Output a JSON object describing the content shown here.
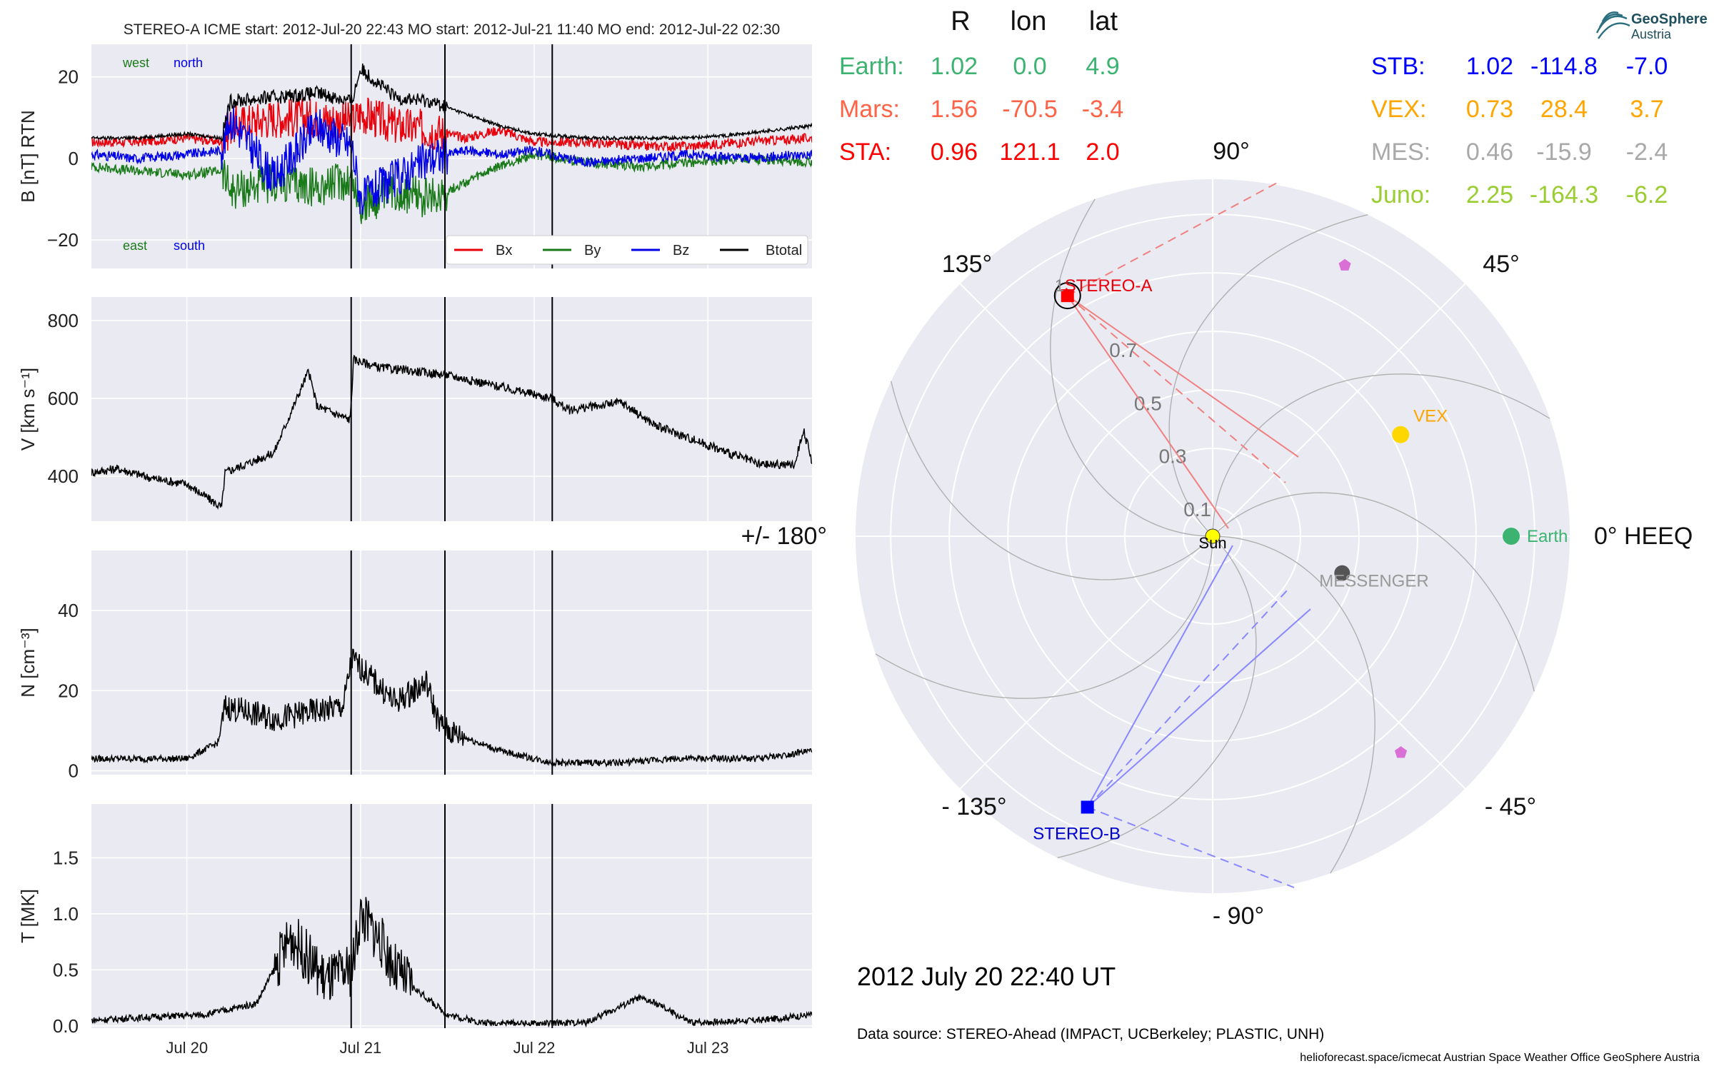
{
  "chart_data": [
    {
      "type": "line",
      "panel": "B",
      "title": "STEREO-A    ICME start: 2012-Jul-20 22:43    MO start: 2012-Jul-21 11:40    MO end: 2012-Jul-22 02:30",
      "ylabel": "B [nT] RTN",
      "ylim": [
        -27,
        28
      ],
      "yticks": [
        "20",
        "0",
        "−20"
      ],
      "ytick_values": [
        20,
        0,
        -20
      ],
      "xlim": [
        19.45,
        23.6
      ],
      "annotations": {
        "west": "west",
        "north": "north",
        "east": "east",
        "south": "south"
      },
      "legend": {
        "placement": "bottom-right",
        "entries": [
          "Bx",
          "By",
          "Bz",
          "Btotal"
        ]
      },
      "series": [
        {
          "name": "Bx",
          "color": "#e8000b",
          "x": [
            19.45,
            19.7,
            20.0,
            20.2,
            20.25,
            20.5,
            20.75,
            20.95,
            21.0,
            21.2,
            21.4,
            21.6,
            21.8,
            22.0,
            22.3,
            22.6,
            22.9,
            23.2,
            23.6
          ],
          "y": [
            4,
            4,
            5,
            4,
            8,
            10,
            10,
            9,
            11,
            8,
            7,
            5,
            7,
            4,
            4,
            3,
            3,
            4,
            5
          ]
        },
        {
          "name": "By",
          "color": "#1a7a1a",
          "x": [
            19.45,
            19.7,
            20.0,
            20.2,
            20.25,
            20.5,
            20.75,
            20.95,
            21.0,
            21.2,
            21.4,
            21.6,
            21.8,
            22.0,
            22.3,
            22.6,
            22.9,
            23.2,
            23.6
          ],
          "y": [
            -2,
            -3,
            -4,
            -3,
            -8,
            -6,
            -7,
            -5,
            -12,
            -8,
            -10,
            -6,
            -2,
            1,
            -1,
            -2,
            -1,
            0,
            -1
          ]
        },
        {
          "name": "Bz",
          "color": "#0000e8",
          "x": [
            19.45,
            19.7,
            20.0,
            20.2,
            20.25,
            20.5,
            20.75,
            20.95,
            21.0,
            21.2,
            21.4,
            21.6,
            21.8,
            22.0,
            22.3,
            22.6,
            22.9,
            23.2,
            23.6
          ],
          "y": [
            1,
            0,
            1,
            2,
            10,
            -5,
            8,
            3,
            -10,
            -5,
            0,
            2,
            1,
            2,
            -1,
            0,
            1,
            0,
            1
          ]
        },
        {
          "name": "Btotal",
          "color": "#000000",
          "x": [
            19.45,
            19.7,
            20.0,
            20.2,
            20.25,
            20.5,
            20.75,
            20.95,
            21.0,
            21.2,
            21.4,
            21.6,
            21.8,
            22.0,
            22.3,
            22.6,
            22.9,
            23.2,
            23.6
          ],
          "y": [
            5,
            5,
            6,
            5,
            14,
            15,
            16,
            14,
            22,
            15,
            14,
            11,
            8,
            6,
            5,
            5,
            5,
            6,
            8
          ]
        }
      ],
      "vlines": [
        20.946,
        21.486,
        22.104
      ]
    },
    {
      "type": "line",
      "panel": "V",
      "ylabel": "V [km s⁻¹]",
      "ylim": [
        285,
        860
      ],
      "yticks": [
        "800",
        "600",
        "400"
      ],
      "ytick_values": [
        800,
        600,
        400
      ],
      "xlim": [
        19.45,
        23.6
      ],
      "series": [
        {
          "name": "",
          "color": "#000000",
          "x": [
            19.45,
            19.6,
            19.8,
            20.0,
            20.2,
            20.22,
            20.5,
            20.7,
            20.75,
            20.94,
            20.96,
            21.1,
            21.3,
            21.5,
            21.8,
            22.1,
            22.2,
            22.5,
            22.7,
            23.0,
            23.3,
            23.5,
            23.55,
            23.6
          ],
          "y": [
            410,
            420,
            395,
            380,
            320,
            410,
            460,
            670,
            580,
            545,
            700,
            680,
            670,
            660,
            630,
            600,
            570,
            590,
            530,
            480,
            430,
            430,
            520,
            440
          ]
        }
      ],
      "vlines": [
        20.946,
        21.486,
        22.104
      ]
    },
    {
      "type": "line",
      "panel": "N",
      "ylabel": "N [cm⁻³]",
      "ylim": [
        -1,
        55
      ],
      "yticks": [
        "40",
        "20",
        "0"
      ],
      "ytick_values": [
        40,
        20,
        0
      ],
      "xlim": [
        19.45,
        23.6
      ],
      "series": [
        {
          "name": "",
          "color": "#000000",
          "x": [
            19.45,
            19.8,
            20.0,
            20.18,
            20.22,
            20.5,
            20.9,
            20.95,
            21.2,
            21.38,
            21.45,
            21.5,
            21.8,
            22.1,
            22.5,
            22.8,
            22.9,
            23.3,
            23.6
          ],
          "y": [
            3,
            3,
            3,
            7,
            16,
            13,
            16,
            28,
            17,
            22,
            12,
            10,
            5,
            2,
            2,
            3,
            3,
            3,
            5
          ]
        }
      ],
      "vlines": [
        20.946,
        21.486,
        22.104
      ]
    },
    {
      "type": "line",
      "panel": "T",
      "ylabel": "T [MK]",
      "ylim": [
        -0.02,
        1.98
      ],
      "yticks": [
        "1.5",
        "1.0",
        "0.5",
        "0.0"
      ],
      "ytick_values": [
        1.5,
        1.0,
        0.5,
        0.0
      ],
      "xlim": [
        19.45,
        23.6
      ],
      "xticks": [
        "Jul 20",
        "Jul 21",
        "Jul 22",
        "Jul 23"
      ],
      "xtick_values": [
        20,
        21,
        22,
        23
      ],
      "series": [
        {
          "name": "",
          "color": "#000000",
          "x": [
            19.45,
            19.8,
            20.1,
            20.4,
            20.6,
            20.7,
            20.8,
            20.95,
            21.0,
            21.1,
            21.2,
            21.3,
            21.5,
            21.7,
            22.0,
            22.3,
            22.6,
            22.7,
            22.9,
            23.3,
            23.6
          ],
          "y": [
            0.05,
            0.08,
            0.1,
            0.2,
            0.8,
            0.6,
            0.4,
            0.5,
            1.0,
            0.8,
            0.5,
            0.35,
            0.1,
            0.03,
            0.02,
            0.03,
            0.25,
            0.2,
            0.03,
            0.05,
            0.1
          ]
        }
      ],
      "vlines": [
        20.946,
        21.486,
        22.104
      ]
    },
    {
      "type": "scatter",
      "panel": "polar",
      "projection": "polar",
      "angle_labels": {
        "deg0": "0° HEEQ",
        "deg45": "45°",
        "deg90": "90°",
        "deg135": "135°",
        "deg180": "+/- 180°",
        "degm135": "- 135°",
        "degm90": "- 90°",
        "degm45": "- 45°"
      },
      "radial_labels": [
        "0.1",
        "0.3",
        "0.5",
        "0.7"
      ],
      "radial_values": [
        0.1,
        0.3,
        0.5,
        0.7
      ],
      "rmax": 1.22,
      "points": [
        {
          "label": "Earth",
          "r": 1.02,
          "lon": 0.0,
          "color": "#3cb371"
        },
        {
          "label": "STEREO-A",
          "r": 0.96,
          "lon": 121.1,
          "color": "#ff0000"
        },
        {
          "label": "STEREO-B",
          "r": 1.02,
          "lon": -114.8,
          "color": "#0000ff"
        },
        {
          "label": "VEX",
          "r": 0.73,
          "lon": 28.4,
          "color": "#ffd700"
        },
        {
          "label": "MESSENGER",
          "r": 0.46,
          "lon": -15.9,
          "color": "#555555"
        },
        {
          "label": "Sun",
          "r": 0.0,
          "lon": 0.0,
          "color": "#ffff00"
        }
      ],
      "markers": [
        {
          "r": 1.03,
          "lon": 64,
          "color": "#da70d6"
        },
        {
          "r": 0.98,
          "lon": -49,
          "color": "#da70d6"
        }
      ],
      "cme_label": "1"
    }
  ],
  "position_table": {
    "headers": [
      "R",
      "lon",
      "lat"
    ],
    "left": [
      {
        "name": "Earth:",
        "r": "1.02",
        "lon": "0.0",
        "lat": "4.9",
        "color": "#3cb371"
      },
      {
        "name": "Mars:",
        "r": "1.56",
        "lon": "-70.5",
        "lat": "-3.4",
        "color": "#ff6347"
      },
      {
        "name": "STA:",
        "r": "0.96",
        "lon": "121.1",
        "lat": "2.0",
        "color": "#ff0000"
      }
    ],
    "right": [
      {
        "name": "STB:",
        "r": "1.02",
        "lon": "-114.8",
        "lat": "-7.0",
        "color": "#0000ff"
      },
      {
        "name": "VEX:",
        "r": "0.73",
        "lon": "28.4",
        "lat": "3.7",
        "color": "#ffa500"
      },
      {
        "name": "MES:",
        "r": "0.46",
        "lon": "-15.9",
        "lat": "-2.4",
        "color": "#a9a9a9"
      },
      {
        "name": "Juno:",
        "r": "2.25",
        "lon": "-164.3",
        "lat": "-6.2",
        "color": "#9acd32"
      }
    ]
  },
  "datetime": "2012 July 20  22:40 UT",
  "data_source": "Data source: STEREO-Ahead (IMPACT, UCBerkeley; PLASTIC, UNH)",
  "footer": "helioforecast.space/icmecat   Austrian Space Weather Office   GeoSphere Austria",
  "logo": {
    "line1": "GeoSphere",
    "line2": "Austria"
  }
}
